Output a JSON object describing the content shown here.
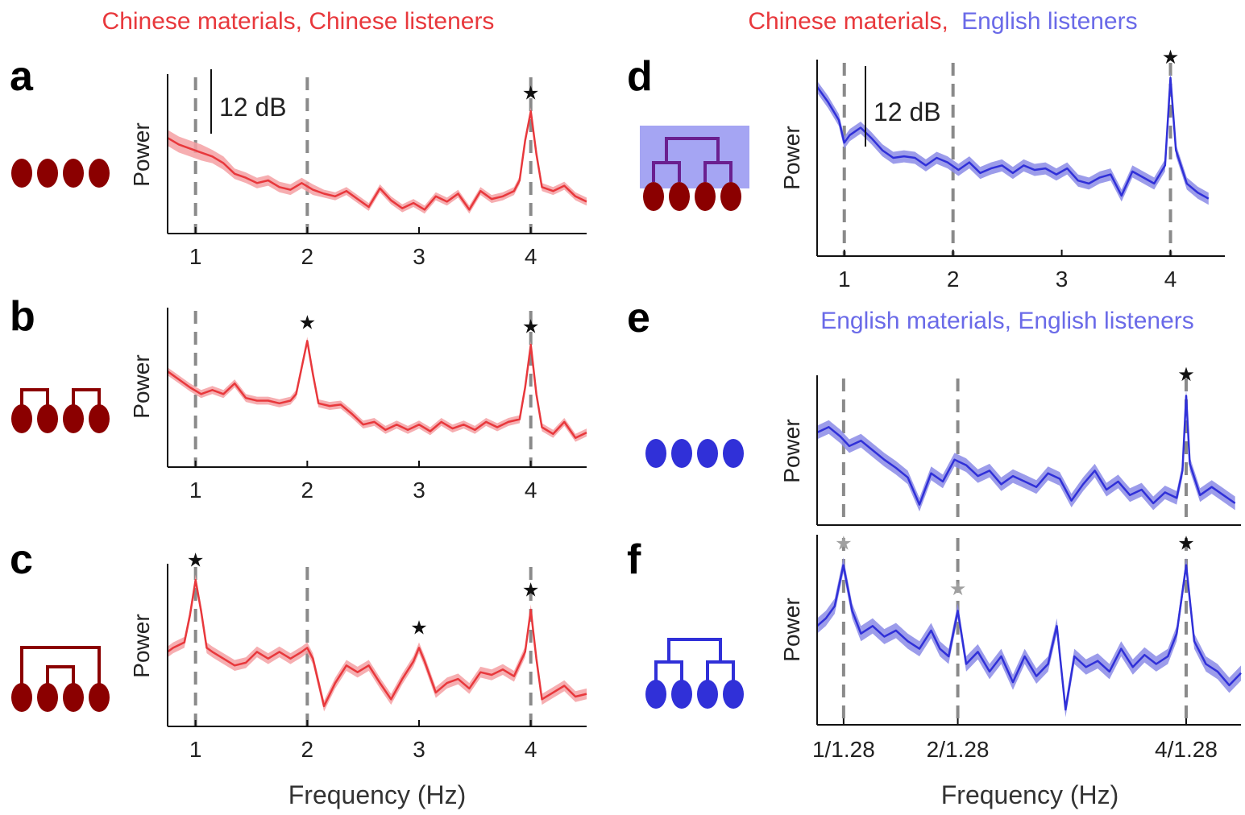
{
  "header_left": {
    "part1": "Chinese materials, Chinese listeners"
  },
  "header_right": {
    "part1": "Chinese materials,",
    "part2": "English listeners"
  },
  "panel_e_header": "English materials, English listeners",
  "colors": {
    "red": "#e8383c",
    "red_band": "#f4a0a3",
    "blue": "#3030d8",
    "blue_band": "#8b8be6",
    "dark_red": "#8b0000",
    "dash": "#8a8a8a",
    "tree_bg": "#8f8ff0",
    "tree_purple": "#6a1f8f"
  },
  "xlabel": "Frequency (Hz)",
  "chart_data": [
    {
      "panel": "a",
      "type": "line",
      "color": "red",
      "ylabel": "Power",
      "scale_bar": "12 dB",
      "xlim": [
        0.75,
        4.5
      ],
      "xticks": [
        {
          "x": 1,
          "label": "1"
        },
        {
          "x": 2,
          "label": "2"
        },
        {
          "x": 3,
          "label": "3"
        },
        {
          "x": 4,
          "label": "4"
        }
      ],
      "dashed_lines": [
        1,
        2,
        4
      ],
      "stars": [
        {
          "x": 4,
          "kind": "black"
        }
      ],
      "x": [
        0.75,
        0.85,
        0.95,
        1.05,
        1.15,
        1.25,
        1.35,
        1.45,
        1.55,
        1.65,
        1.75,
        1.85,
        1.95,
        2.05,
        2.15,
        2.25,
        2.35,
        2.45,
        2.55,
        2.65,
        2.75,
        2.85,
        2.95,
        3.05,
        3.15,
        3.25,
        3.35,
        3.45,
        3.55,
        3.65,
        3.75,
        3.85,
        3.9,
        3.95,
        4.0,
        4.05,
        4.1,
        4.2,
        4.3,
        4.4,
        4.5
      ],
      "y": [
        0.52,
        0.47,
        0.44,
        0.41,
        0.38,
        0.33,
        0.25,
        0.22,
        0.18,
        0.2,
        0.15,
        0.13,
        0.18,
        0.13,
        0.1,
        0.08,
        0.12,
        0.06,
        0.0,
        0.14,
        0.05,
        -0.01,
        0.03,
        -0.02,
        0.08,
        0.04,
        0.1,
        -0.02,
        0.12,
        0.06,
        0.08,
        0.12,
        0.2,
        0.5,
        0.72,
        0.4,
        0.15,
        0.12,
        0.16,
        0.08,
        0.04
      ],
      "band": [
        0.06,
        0.06,
        0.06,
        0.06,
        0.05,
        0.05,
        0.04,
        0.04,
        0.04,
        0.04,
        0.04,
        0.04,
        0.04,
        0.04,
        0.03,
        0.03,
        0.03,
        0.03,
        0.03,
        0.03,
        0.03,
        0.03,
        0.03,
        0.03,
        0.03,
        0.03,
        0.03,
        0.03,
        0.03,
        0.03,
        0.03,
        0.03,
        0.03,
        0.03,
        0.03,
        0.03,
        0.03,
        0.03,
        0.03,
        0.03,
        0.03
      ]
    },
    {
      "panel": "b",
      "type": "line",
      "color": "red",
      "ylabel": "Power",
      "xlim": [
        0.75,
        4.5
      ],
      "xticks": [
        {
          "x": 1,
          "label": "1"
        },
        {
          "x": 2,
          "label": "2"
        },
        {
          "x": 3,
          "label": "3"
        },
        {
          "x": 4,
          "label": "4"
        }
      ],
      "dashed_lines": [
        1,
        4
      ],
      "stars": [
        {
          "x": 2,
          "kind": "black"
        },
        {
          "x": 4,
          "kind": "black"
        }
      ],
      "x": [
        0.75,
        0.85,
        0.95,
        1.05,
        1.15,
        1.25,
        1.35,
        1.45,
        1.55,
        1.65,
        1.75,
        1.85,
        1.9,
        1.95,
        2.0,
        2.05,
        2.1,
        2.2,
        2.3,
        2.4,
        2.5,
        2.6,
        2.7,
        2.8,
        2.9,
        3.0,
        3.1,
        3.2,
        3.3,
        3.4,
        3.5,
        3.6,
        3.7,
        3.8,
        3.9,
        3.95,
        4.0,
        4.05,
        4.1,
        4.2,
        4.3,
        4.4,
        4.5
      ],
      "y": [
        0.52,
        0.46,
        0.4,
        0.35,
        0.38,
        0.35,
        0.43,
        0.32,
        0.3,
        0.3,
        0.28,
        0.3,
        0.35,
        0.55,
        0.75,
        0.5,
        0.28,
        0.26,
        0.27,
        0.2,
        0.12,
        0.14,
        0.08,
        0.12,
        0.08,
        0.12,
        0.07,
        0.14,
        0.09,
        0.12,
        0.08,
        0.14,
        0.1,
        0.14,
        0.16,
        0.4,
        0.72,
        0.35,
        0.1,
        0.05,
        0.14,
        0.02,
        0.06
      ],
      "band": [
        0.03,
        0.03,
        0.03,
        0.03,
        0.03,
        0.03,
        0.03,
        0.03,
        0.03,
        0.03,
        0.03,
        0.03,
        0.03,
        0.03,
        0.03,
        0.03,
        0.03,
        0.03,
        0.03,
        0.03,
        0.03,
        0.03,
        0.03,
        0.03,
        0.03,
        0.03,
        0.03,
        0.03,
        0.03,
        0.03,
        0.03,
        0.03,
        0.03,
        0.03,
        0.03,
        0.03,
        0.03,
        0.03,
        0.03,
        0.03,
        0.03,
        0.03,
        0.03
      ]
    },
    {
      "panel": "c",
      "type": "line",
      "color": "red",
      "ylabel": "Power",
      "xlim": [
        0.75,
        4.5
      ],
      "xticks": [
        {
          "x": 1,
          "label": "1"
        },
        {
          "x": 2,
          "label": "2"
        },
        {
          "x": 3,
          "label": "3"
        },
        {
          "x": 4,
          "label": "4"
        }
      ],
      "dashed_lines": [
        1,
        2,
        4
      ],
      "stars": [
        {
          "x": 1,
          "kind": "black"
        },
        {
          "x": 3,
          "kind": "black"
        },
        {
          "x": 4,
          "kind": "black"
        }
      ],
      "x": [
        0.75,
        0.8,
        0.85,
        0.9,
        0.95,
        1.0,
        1.05,
        1.1,
        1.15,
        1.25,
        1.35,
        1.45,
        1.55,
        1.65,
        1.75,
        1.85,
        1.95,
        2.0,
        2.05,
        2.15,
        2.25,
        2.35,
        2.45,
        2.55,
        2.65,
        2.75,
        2.85,
        2.95,
        3.0,
        3.05,
        3.15,
        3.25,
        3.35,
        3.45,
        3.55,
        3.65,
        3.75,
        3.85,
        3.95,
        4.0,
        4.05,
        4.1,
        4.2,
        4.3,
        4.4,
        4.5
      ],
      "y": [
        0.35,
        0.38,
        0.4,
        0.42,
        0.62,
        0.88,
        0.65,
        0.38,
        0.35,
        0.3,
        0.25,
        0.27,
        0.35,
        0.3,
        0.35,
        0.3,
        0.35,
        0.38,
        0.3,
        -0.05,
        0.12,
        0.25,
        0.2,
        0.25,
        0.12,
        0.0,
        0.15,
        0.28,
        0.38,
        0.28,
        0.05,
        0.12,
        0.15,
        0.08,
        0.2,
        0.18,
        0.22,
        0.17,
        0.35,
        0.66,
        0.3,
        0.0,
        0.05,
        0.1,
        0.02,
        0.04
      ],
      "band": [
        0.04,
        0.04,
        0.04,
        0.04,
        0.04,
        0.04,
        0.04,
        0.04,
        0.04,
        0.04,
        0.04,
        0.04,
        0.04,
        0.04,
        0.04,
        0.04,
        0.04,
        0.04,
        0.04,
        0.04,
        0.04,
        0.04,
        0.04,
        0.04,
        0.04,
        0.04,
        0.04,
        0.04,
        0.04,
        0.04,
        0.04,
        0.04,
        0.04,
        0.04,
        0.04,
        0.04,
        0.04,
        0.04,
        0.04,
        0.04,
        0.04,
        0.04,
        0.04,
        0.04,
        0.04,
        0.04
      ]
    },
    {
      "panel": "d",
      "type": "line",
      "color": "blue",
      "ylabel": "Power",
      "scale_bar": "12 dB",
      "xlim": [
        0.75,
        4.5
      ],
      "xticks": [
        {
          "x": 1,
          "label": "1"
        },
        {
          "x": 2,
          "label": "2"
        },
        {
          "x": 3,
          "label": "3"
        },
        {
          "x": 4,
          "label": "4"
        }
      ],
      "dashed_lines": [
        1,
        2,
        4
      ],
      "stars": [
        {
          "x": 4,
          "kind": "black"
        }
      ],
      "x": [
        0.75,
        0.85,
        0.95,
        1.0,
        1.05,
        1.15,
        1.25,
        1.35,
        1.45,
        1.55,
        1.65,
        1.75,
        1.85,
        1.95,
        2.05,
        2.15,
        2.25,
        2.35,
        2.45,
        2.55,
        2.65,
        2.75,
        2.85,
        2.95,
        3.05,
        3.15,
        3.25,
        3.35,
        3.45,
        3.55,
        3.65,
        3.75,
        3.85,
        3.95,
        4.0,
        4.05,
        4.15,
        4.25,
        4.35
      ],
      "y": [
        0.82,
        0.72,
        0.6,
        0.45,
        0.5,
        0.55,
        0.48,
        0.4,
        0.35,
        0.36,
        0.35,
        0.3,
        0.35,
        0.32,
        0.27,
        0.32,
        0.25,
        0.28,
        0.3,
        0.25,
        0.3,
        0.27,
        0.28,
        0.24,
        0.28,
        0.2,
        0.18,
        0.22,
        0.24,
        0.1,
        0.26,
        0.22,
        0.18,
        0.3,
        0.88,
        0.4,
        0.18,
        0.12,
        0.08
      ],
      "band": [
        0.04,
        0.04,
        0.04,
        0.04,
        0.04,
        0.04,
        0.04,
        0.04,
        0.04,
        0.04,
        0.04,
        0.04,
        0.04,
        0.04,
        0.04,
        0.04,
        0.04,
        0.04,
        0.04,
        0.04,
        0.04,
        0.04,
        0.04,
        0.04,
        0.04,
        0.04,
        0.04,
        0.04,
        0.04,
        0.04,
        0.04,
        0.04,
        0.04,
        0.04,
        0.04,
        0.04,
        0.04,
        0.04,
        0.04
      ]
    },
    {
      "panel": "e",
      "type": "line",
      "color": "blue",
      "ylabel": "Power",
      "xlim": [
        0.6,
        3.5
      ],
      "xticks": [],
      "dashed_lines": [
        0.78125,
        1.5625,
        3.125
      ],
      "stars": [
        {
          "x": 3.125,
          "kind": "black"
        }
      ],
      "x": [
        0.6,
        0.68,
        0.76,
        0.82,
        0.9,
        0.98,
        1.06,
        1.14,
        1.22,
        1.3,
        1.38,
        1.46,
        1.54,
        1.62,
        1.7,
        1.78,
        1.86,
        1.94,
        2.02,
        2.1,
        2.18,
        2.26,
        2.34,
        2.42,
        2.5,
        2.58,
        2.66,
        2.74,
        2.82,
        2.9,
        2.98,
        3.06,
        3.1,
        3.125,
        3.15,
        3.22,
        3.3,
        3.38,
        3.46
      ],
      "y": [
        0.58,
        0.62,
        0.55,
        0.48,
        0.52,
        0.45,
        0.38,
        0.32,
        0.25,
        0.05,
        0.28,
        0.22,
        0.38,
        0.34,
        0.26,
        0.3,
        0.2,
        0.26,
        0.22,
        0.18,
        0.28,
        0.24,
        0.08,
        0.2,
        0.3,
        0.16,
        0.22,
        0.12,
        0.16,
        0.06,
        0.14,
        0.1,
        0.3,
        0.85,
        0.35,
        0.12,
        0.18,
        0.12,
        0.06
      ],
      "band": [
        0.05,
        0.05,
        0.05,
        0.05,
        0.05,
        0.05,
        0.05,
        0.05,
        0.05,
        0.05,
        0.05,
        0.05,
        0.05,
        0.05,
        0.05,
        0.05,
        0.05,
        0.05,
        0.05,
        0.05,
        0.05,
        0.05,
        0.05,
        0.05,
        0.05,
        0.05,
        0.05,
        0.05,
        0.05,
        0.05,
        0.05,
        0.05,
        0.05,
        0.05,
        0.05,
        0.05,
        0.05,
        0.05,
        0.05
      ]
    },
    {
      "panel": "f",
      "type": "line",
      "color": "blue",
      "ylabel": "Power",
      "xlim": [
        0.6,
        3.5
      ],
      "xticks": [
        {
          "x": 0.78125,
          "label": "1/1.28"
        },
        {
          "x": 1.5625,
          "label": "2/1.28"
        },
        {
          "x": 3.125,
          "label": "4/1.28"
        }
      ],
      "dashed_lines": [
        0.78125,
        1.5625,
        3.125
      ],
      "stars": [
        {
          "x": 0.78125,
          "kind": "gray"
        },
        {
          "x": 1.5625,
          "kind": "gray"
        },
        {
          "x": 3.125,
          "kind": "black"
        }
      ],
      "x": [
        0.6,
        0.66,
        0.72,
        0.78,
        0.84,
        0.9,
        0.98,
        1.06,
        1.14,
        1.22,
        1.3,
        1.38,
        1.44,
        1.5,
        1.5625,
        1.62,
        1.7,
        1.78,
        1.86,
        1.94,
        2.02,
        2.1,
        2.18,
        2.24,
        2.3,
        2.36,
        2.44,
        2.52,
        2.6,
        2.68,
        2.76,
        2.84,
        2.92,
        3.0,
        3.06,
        3.125,
        3.18,
        3.26,
        3.34,
        3.42,
        3.5
      ],
      "y": [
        0.45,
        0.5,
        0.58,
        0.85,
        0.55,
        0.4,
        0.45,
        0.38,
        0.42,
        0.35,
        0.3,
        0.42,
        0.3,
        0.25,
        0.55,
        0.2,
        0.28,
        0.15,
        0.25,
        0.08,
        0.25,
        0.12,
        0.2,
        0.45,
        -0.1,
        0.25,
        0.18,
        0.22,
        0.15,
        0.3,
        0.18,
        0.26,
        0.2,
        0.25,
        0.4,
        0.85,
        0.35,
        0.2,
        0.15,
        0.06,
        0.14
      ],
      "band": [
        0.05,
        0.05,
        0.05,
        0.05,
        0.05,
        0.05,
        0.05,
        0.05,
        0.05,
        0.05,
        0.05,
        0.05,
        0.05,
        0.05,
        0.05,
        0.05,
        0.05,
        0.05,
        0.05,
        0.05,
        0.05,
        0.05,
        0.05,
        0.05,
        0.05,
        0.05,
        0.05,
        0.05,
        0.05,
        0.05,
        0.05,
        0.05,
        0.05,
        0.05,
        0.05,
        0.05,
        0.05,
        0.05,
        0.05,
        0.05,
        0.05
      ]
    }
  ]
}
